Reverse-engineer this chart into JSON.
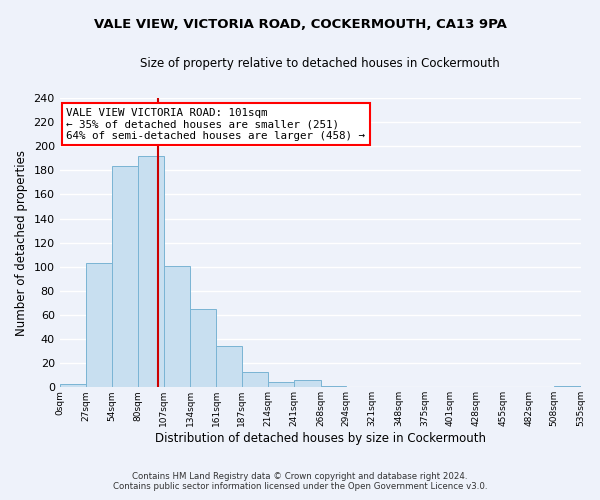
{
  "title": "VALE VIEW, VICTORIA ROAD, COCKERMOUTH, CA13 9PA",
  "subtitle": "Size of property relative to detached houses in Cockermouth",
  "xlabel": "Distribution of detached houses by size in Cockermouth",
  "ylabel": "Number of detached properties",
  "footnote1": "Contains HM Land Registry data © Crown copyright and database right 2024.",
  "footnote2": "Contains public sector information licensed under the Open Government Licence v3.0.",
  "bar_edges": [
    0,
    27,
    54,
    80,
    107,
    134,
    161,
    187,
    214,
    241,
    268,
    294,
    321,
    348,
    375,
    401,
    428,
    455,
    482,
    508,
    535
  ],
  "bar_heights": [
    3,
    103,
    184,
    192,
    101,
    65,
    34,
    13,
    4,
    6,
    1,
    0,
    0,
    0,
    0,
    0,
    0,
    0,
    0,
    1
  ],
  "bar_color": "#c8dff0",
  "bar_edgecolor": "#7ab4d4",
  "tick_labels": [
    "0sqm",
    "27sqm",
    "54sqm",
    "80sqm",
    "107sqm",
    "134sqm",
    "161sqm",
    "187sqm",
    "214sqm",
    "241sqm",
    "268sqm",
    "294sqm",
    "321sqm",
    "348sqm",
    "375sqm",
    "401sqm",
    "428sqm",
    "455sqm",
    "482sqm",
    "508sqm",
    "535sqm"
  ],
  "vline_x": 101,
  "vline_color": "#cc0000",
  "annotation_text": "VALE VIEW VICTORIA ROAD: 101sqm\n← 35% of detached houses are smaller (251)\n64% of semi-detached houses are larger (458) →",
  "ylim": [
    0,
    240
  ],
  "xlim": [
    0,
    535
  ],
  "background_color": "#eef2fa",
  "grid_color": "#ffffff",
  "yticks": [
    0,
    20,
    40,
    60,
    80,
    100,
    120,
    140,
    160,
    180,
    200,
    220,
    240
  ]
}
